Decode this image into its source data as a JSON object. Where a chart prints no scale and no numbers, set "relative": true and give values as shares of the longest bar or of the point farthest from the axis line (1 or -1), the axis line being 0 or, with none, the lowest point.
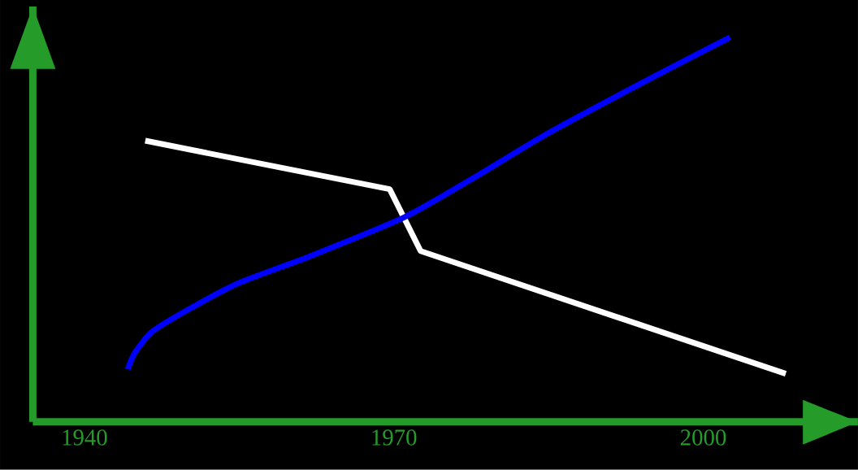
{
  "chart_data": {
    "type": "line",
    "relative": true,
    "xlim": [
      1935,
      2015
    ],
    "xticks": [
      1940,
      1970,
      2000
    ],
    "tick_labels": "x",
    "line_style": "solid",
    "marker": "none",
    "series": [
      {
        "color": "#ffffff",
        "x": [
          1945.9,
          1969.6,
          1972.6,
          2008
        ],
        "values": [
          0.731,
          0.605,
          0.444,
          0.125
        ]
      },
      {
        "color": "#0000ff",
        "x": [
          1944.2,
          1944.9,
          1946.5,
          1949.6,
          1954.8,
          1962.1,
          1971.1,
          1978.4,
          1985.0,
          1994.1,
          2002.6
        ],
        "values": [
          0.137,
          0.18,
          0.233,
          0.285,
          0.359,
          0.433,
          0.533,
          0.645,
          0.751,
          0.882,
          1.0
        ]
      }
    ]
  }
}
